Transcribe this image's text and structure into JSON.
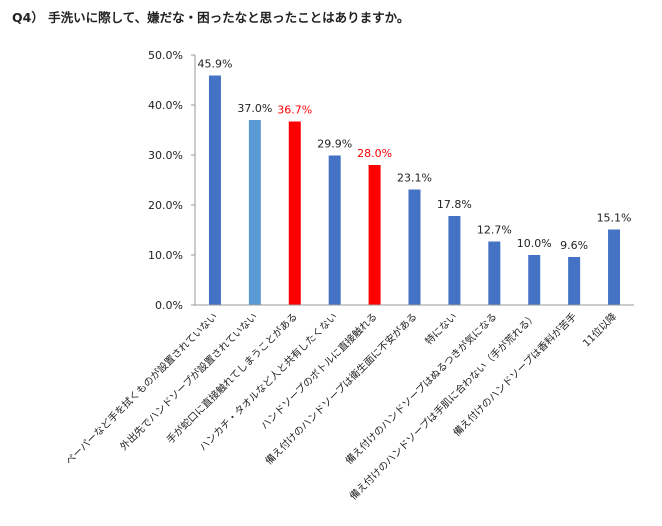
{
  "chart_data": {
    "type": "bar",
    "title": "Q4） 手洗いに際して、嫌だな・困ったなと思ったことはありますか。",
    "categories": [
      "ペーパーなど手を拭くものが設置されていない",
      "外出先でハンドソープが設置されていない",
      "手が蛇口に直接触れてしまうことがある",
      "ハンカチ・タオルなど人と共有したくない",
      "ハンドソープのボトルに直接触れる",
      "備え付けのハンドソープは衛生面に不安がある",
      "特にない",
      "備え付けのハンドソープはぬるつきが気になる",
      "備え付けのハンドソープは手肌に合わない（手が荒れる）",
      "備え付けのハンドソープは香料が苦手",
      "11位以降"
    ],
    "values": [
      45.9,
      37.0,
      36.7,
      29.9,
      28.0,
      23.1,
      17.8,
      12.7,
      10.0,
      9.6,
      15.1
    ],
    "value_labels": [
      "45.9%",
      "37.0%",
      "36.7%",
      "29.9%",
      "28.0%",
      "23.1%",
      "17.8%",
      "12.7%",
      "10.0%",
      "9.6%",
      "15.1%"
    ],
    "bar_colors": [
      "#4472c4",
      "#5b9bd5",
      "#ff0000",
      "#4472c4",
      "#ff0000",
      "#4472c4",
      "#4472c4",
      "#4472c4",
      "#4472c4",
      "#4472c4",
      "#4472c4"
    ],
    "label_colors": [
      "#222222",
      "#222222",
      "#ff0000",
      "#222222",
      "#ff0000",
      "#222222",
      "#222222",
      "#222222",
      "#222222",
      "#222222",
      "#222222"
    ],
    "y_ticks": [
      "0.0%",
      "10.0%",
      "20.0%",
      "30.0%",
      "40.0%",
      "50.0%"
    ],
    "ylim": [
      0,
      50
    ],
    "grid": false,
    "legend": "none"
  }
}
